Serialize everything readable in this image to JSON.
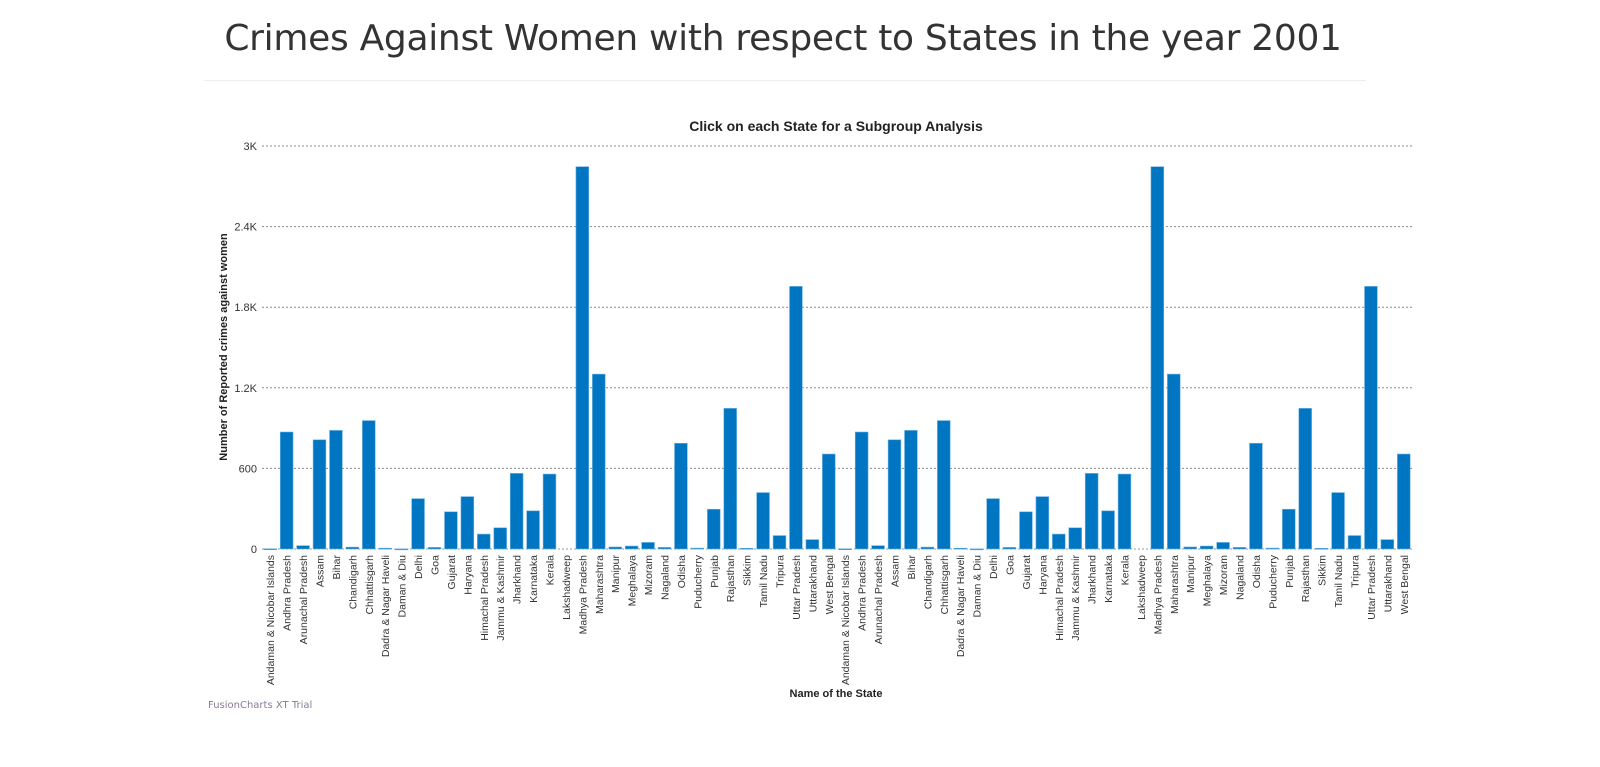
{
  "page": {
    "title": "Crimes Against Women with respect to States in the year 2001",
    "trial_watermark": "FusionCharts XT Trial"
  },
  "chart_data": {
    "type": "bar",
    "title": "Click on each State for a Subgroup Analysis",
    "xlabel": "Name of the State",
    "ylabel": "Number of Reported crimes against women",
    "ylim": [
      0,
      3000
    ],
    "yticks": [
      0,
      600,
      1200,
      1800,
      2400,
      3000
    ],
    "ytick_labels": [
      "0",
      "600",
      "1.2K",
      "1.8K",
      "2.4K",
      "3K"
    ],
    "grid": true,
    "bar_color": "#0075c2",
    "categories": [
      "Andaman & Nicobar Islands",
      "Andhra Pradesh",
      "Arunachal Pradesh",
      "Assam",
      "Bihar",
      "Chandigarh",
      "Chhattisgarh",
      "Dadra & Nagar Haveli",
      "Daman & Diu",
      "Delhi",
      "Goa",
      "Gujarat",
      "Haryana",
      "Himachal Pradesh",
      "Jammu & Kashmir",
      "Jharkhand",
      "Karnataka",
      "Kerala",
      "Lakshadweep",
      "Madhya Pradesh",
      "Maharashtra",
      "Manipur",
      "Meghalaya",
      "Mizoram",
      "Nagaland",
      "Odisha",
      "Puducherry",
      "Punjab",
      "Rajasthan",
      "Sikkim",
      "Tamil Nadu",
      "Tripura",
      "Uttar Pradesh",
      "Uttarakhand",
      "West Bengal",
      "Andaman & Nicobar Islands",
      "Andhra Pradesh",
      "Arunachal Pradesh",
      "Assam",
      "Bihar",
      "Chandigarh",
      "Chhattisgarh",
      "Dadra & Nagar Haveli",
      "Daman & Diu",
      "Delhi",
      "Goa",
      "Gujarat",
      "Haryana",
      "Himachal Pradesh",
      "Jammu & Kashmir",
      "Jharkhand",
      "Karnataka",
      "Kerala",
      "Lakshadweep",
      "Madhya Pradesh",
      "Maharashtra",
      "Manipur",
      "Meghalaya",
      "Mizoram",
      "Nagaland",
      "Odisha",
      "Puducherry",
      "Punjab",
      "Rajasthan",
      "Sikkim",
      "Tamil Nadu",
      "Tripura",
      "Uttar Pradesh",
      "Uttarakhand",
      "West Bengal"
    ],
    "values": [
      2,
      871,
      25,
      813,
      883,
      14,
      956,
      6,
      1,
      375,
      12,
      277,
      390,
      111,
      158,
      563,
      284,
      558,
      0,
      2846,
      1302,
      15,
      22,
      49,
      12,
      787,
      7,
      296,
      1047,
      5,
      420,
      100,
      1955,
      70,
      707,
      2,
      871,
      25,
      813,
      883,
      14,
      956,
      6,
      1,
      375,
      12,
      277,
      390,
      111,
      158,
      563,
      284,
      558,
      0,
      2846,
      1302,
      15,
      22,
      49,
      12,
      787,
      7,
      296,
      1047,
      5,
      420,
      100,
      1955,
      70,
      707
    ]
  }
}
